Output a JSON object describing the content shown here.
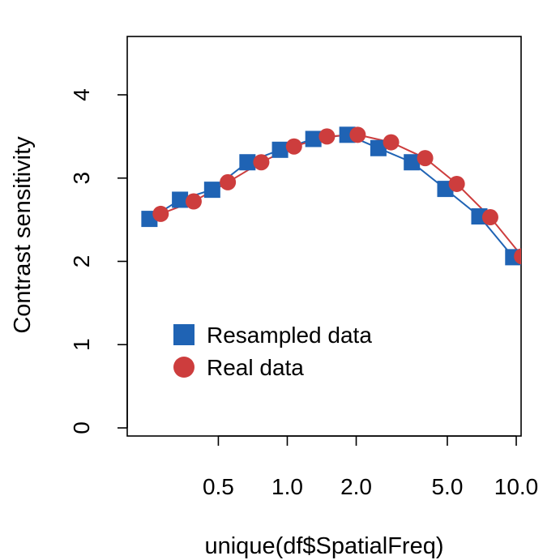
{
  "chart_data": {
    "type": "line",
    "xlabel": "unique(df$SpatialFreq)",
    "ylabel": "Contrast sensitivity",
    "x_scale": "log",
    "xlim": [
      0.2,
      10.5
    ],
    "ylim": [
      0,
      4.6
    ],
    "x_ticks": [
      0.5,
      1.0,
      2.0,
      5.0,
      10.0
    ],
    "x_tick_labels": [
      "0.5",
      "1.0",
      "2.0",
      "5.0",
      "10.0"
    ],
    "y_ticks": [
      0,
      1,
      2,
      3,
      4
    ],
    "y_tick_labels": [
      "0",
      "1",
      "2",
      "3",
      "4"
    ],
    "grid": false,
    "legend_position": "bottom-left",
    "series": [
      {
        "name": "Resampled data",
        "marker": "square",
        "color": "#1f63b4",
        "x": [
          0.25,
          0.34,
          0.47,
          0.67,
          0.93,
          1.3,
          1.83,
          2.5,
          3.5,
          4.9,
          6.9,
          9.7
        ],
        "y": [
          2.51,
          2.74,
          2.86,
          3.19,
          3.34,
          3.47,
          3.52,
          3.36,
          3.19,
          2.87,
          2.54,
          2.05
        ]
      },
      {
        "name": "Real data",
        "marker": "circle",
        "color": "#cd3d3d",
        "x": [
          0.28,
          0.39,
          0.55,
          0.77,
          1.07,
          1.49,
          2.03,
          2.84,
          4.0,
          5.5,
          7.7,
          10.6
        ],
        "y": [
          2.57,
          2.72,
          2.95,
          3.19,
          3.38,
          3.5,
          3.52,
          3.43,
          3.24,
          2.93,
          2.53,
          2.06
        ]
      }
    ]
  }
}
